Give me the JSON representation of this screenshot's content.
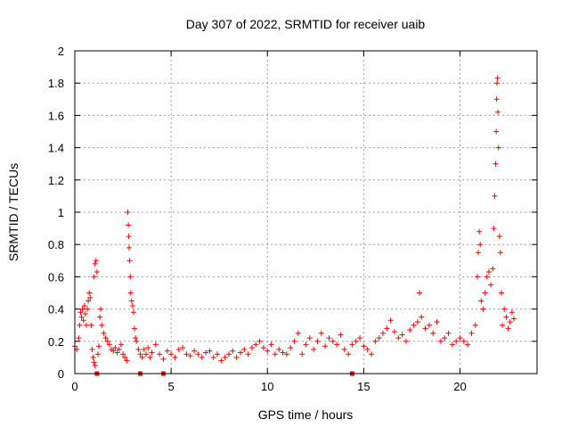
{
  "chart_data": {
    "type": "scatter",
    "title": "Day 307 of 2022, SRMTID for receiver uaib",
    "xlabel": "GPS time / hours",
    "ylabel": "SRMTID / TECUs",
    "xlim": [
      0,
      24
    ],
    "ylim": [
      0,
      2
    ],
    "x_ticks": [
      "0",
      "5",
      "10",
      "15",
      "20"
    ],
    "y_ticks": [
      "0",
      "0.2",
      "0.4",
      "0.6",
      "0.8",
      "1",
      "1.2",
      "1.4",
      "1.6",
      "1.8",
      "2"
    ],
    "grid": true,
    "marker": "+",
    "color": "#ff0000",
    "series": [
      {
        "name": "SRMTID",
        "points": [
          [
            0.0,
            0.17
          ],
          [
            0.1,
            0.15
          ],
          [
            0.2,
            0.22
          ],
          [
            0.25,
            0.3
          ],
          [
            0.3,
            0.38
          ],
          [
            0.35,
            0.35
          ],
          [
            0.4,
            0.4
          ],
          [
            0.45,
            0.33
          ],
          [
            0.5,
            0.42
          ],
          [
            0.55,
            0.37
          ],
          [
            0.6,
            0.3
          ],
          [
            0.65,
            0.4
          ],
          [
            0.7,
            0.45
          ],
          [
            0.75,
            0.5
          ],
          [
            0.8,
            0.47
          ],
          [
            0.85,
            0.3
          ],
          [
            0.9,
            0.15
          ],
          [
            0.95,
            0.1
          ],
          [
            1.0,
            0.07
          ],
          [
            1.05,
            0.05
          ],
          [
            1.0,
            0.6
          ],
          [
            1.05,
            0.68
          ],
          [
            1.1,
            0.7
          ],
          [
            1.15,
            0.63
          ],
          [
            1.2,
            0.12
          ],
          [
            1.25,
            0.17
          ],
          [
            1.3,
            0.35
          ],
          [
            1.35,
            0.4
          ],
          [
            1.4,
            0.3
          ],
          [
            1.5,
            0.25
          ],
          [
            1.6,
            0.22
          ],
          [
            1.7,
            0.2
          ],
          [
            1.8,
            0.18
          ],
          [
            1.9,
            0.15
          ],
          [
            2.0,
            0.14
          ],
          [
            2.1,
            0.16
          ],
          [
            2.2,
            0.13
          ],
          [
            2.3,
            0.15
          ],
          [
            2.4,
            0.18
          ],
          [
            2.5,
            0.12
          ],
          [
            2.6,
            0.1
          ],
          [
            2.7,
            0.08
          ],
          [
            2.75,
            1.0
          ],
          [
            2.78,
            0.92
          ],
          [
            2.8,
            0.85
          ],
          [
            2.82,
            0.78
          ],
          [
            2.85,
            0.7
          ],
          [
            2.88,
            0.6
          ],
          [
            2.9,
            0.5
          ],
          [
            2.95,
            0.45
          ],
          [
            3.0,
            0.42
          ],
          [
            3.05,
            0.38
          ],
          [
            3.1,
            0.28
          ],
          [
            3.15,
            0.22
          ],
          [
            3.2,
            0.2
          ],
          [
            3.3,
            0.15
          ],
          [
            3.4,
            0.12
          ],
          [
            3.5,
            0.1
          ],
          [
            3.6,
            0.15
          ],
          [
            3.7,
            0.12
          ],
          [
            3.8,
            0.16
          ],
          [
            3.9,
            0.1
          ],
          [
            4.0,
            0.13
          ],
          [
            4.2,
            0.18
          ],
          [
            4.4,
            0.12
          ],
          [
            4.6,
            0.09
          ],
          [
            4.8,
            0.14
          ],
          [
            5.0,
            0.12
          ],
          [
            5.2,
            0.1
          ],
          [
            5.4,
            0.15
          ],
          [
            5.6,
            0.16
          ],
          [
            5.8,
            0.12
          ],
          [
            6.0,
            0.11
          ],
          [
            6.2,
            0.14
          ],
          [
            6.4,
            0.12
          ],
          [
            6.6,
            0.1
          ],
          [
            6.8,
            0.13
          ],
          [
            7.0,
            0.14
          ],
          [
            7.2,
            0.1
          ],
          [
            7.4,
            0.12
          ],
          [
            7.6,
            0.08
          ],
          [
            7.8,
            0.1
          ],
          [
            8.0,
            0.12
          ],
          [
            8.2,
            0.14
          ],
          [
            8.4,
            0.1
          ],
          [
            8.6,
            0.13
          ],
          [
            8.8,
            0.15
          ],
          [
            9.0,
            0.12
          ],
          [
            9.2,
            0.16
          ],
          [
            9.4,
            0.18
          ],
          [
            9.6,
            0.2
          ],
          [
            9.8,
            0.16
          ],
          [
            10.0,
            0.14
          ],
          [
            10.2,
            0.18
          ],
          [
            10.4,
            0.12
          ],
          [
            10.6,
            0.15
          ],
          [
            10.8,
            0.13
          ],
          [
            11.0,
            0.12
          ],
          [
            11.2,
            0.16
          ],
          [
            11.4,
            0.2
          ],
          [
            11.6,
            0.25
          ],
          [
            11.8,
            0.12
          ],
          [
            12.0,
            0.18
          ],
          [
            12.2,
            0.22
          ],
          [
            12.4,
            0.15
          ],
          [
            12.6,
            0.2
          ],
          [
            12.8,
            0.25
          ],
          [
            13.0,
            0.17
          ],
          [
            13.2,
            0.22
          ],
          [
            13.4,
            0.2
          ],
          [
            13.6,
            0.18
          ],
          [
            13.8,
            0.24
          ],
          [
            14.0,
            0.15
          ],
          [
            14.2,
            0.12
          ],
          [
            14.4,
            0.18
          ],
          [
            14.6,
            0.2
          ],
          [
            14.8,
            0.22
          ],
          [
            15.0,
            0.17
          ],
          [
            15.2,
            0.15
          ],
          [
            15.4,
            0.12
          ],
          [
            15.6,
            0.2
          ],
          [
            15.8,
            0.22
          ],
          [
            16.0,
            0.25
          ],
          [
            16.2,
            0.28
          ],
          [
            16.4,
            0.33
          ],
          [
            16.6,
            0.26
          ],
          [
            16.8,
            0.22
          ],
          [
            17.0,
            0.24
          ],
          [
            17.2,
            0.2
          ],
          [
            17.4,
            0.27
          ],
          [
            17.6,
            0.3
          ],
          [
            17.8,
            0.32
          ],
          [
            17.9,
            0.5
          ],
          [
            18.0,
            0.35
          ],
          [
            18.2,
            0.28
          ],
          [
            18.4,
            0.3
          ],
          [
            18.6,
            0.25
          ],
          [
            18.8,
            0.32
          ],
          [
            19.0,
            0.2
          ],
          [
            19.2,
            0.22
          ],
          [
            19.4,
            0.25
          ],
          [
            19.6,
            0.18
          ],
          [
            19.8,
            0.2
          ],
          [
            20.0,
            0.22
          ],
          [
            20.2,
            0.2
          ],
          [
            20.4,
            0.18
          ],
          [
            20.6,
            0.25
          ],
          [
            20.8,
            0.3
          ],
          [
            20.9,
            0.6
          ],
          [
            20.95,
            0.75
          ],
          [
            21.0,
            0.88
          ],
          [
            21.05,
            0.8
          ],
          [
            21.1,
            0.45
          ],
          [
            21.2,
            0.4
          ],
          [
            21.3,
            0.5
          ],
          [
            21.4,
            0.6
          ],
          [
            21.5,
            0.63
          ],
          [
            21.6,
            0.55
          ],
          [
            21.7,
            0.65
          ],
          [
            21.75,
            0.9
          ],
          [
            21.8,
            1.1
          ],
          [
            21.85,
            1.3
          ],
          [
            21.88,
            1.5
          ],
          [
            21.9,
            1.7
          ],
          [
            21.92,
            1.8
          ],
          [
            21.95,
            1.83
          ],
          [
            21.97,
            1.62
          ],
          [
            22.0,
            1.4
          ],
          [
            22.05,
            0.85
          ],
          [
            22.1,
            0.75
          ],
          [
            22.15,
            0.5
          ],
          [
            22.2,
            0.3
          ],
          [
            22.3,
            0.4
          ],
          [
            22.4,
            0.35
          ],
          [
            22.5,
            0.28
          ],
          [
            22.6,
            0.32
          ],
          [
            22.7,
            0.38
          ],
          [
            22.8,
            0.34
          ]
        ]
      },
      {
        "name": "Zero markers",
        "marker": "square",
        "points": [
          [
            1.15,
            0.0
          ],
          [
            3.4,
            0.0
          ],
          [
            4.6,
            0.0
          ],
          [
            14.4,
            0.0
          ]
        ]
      }
    ]
  }
}
